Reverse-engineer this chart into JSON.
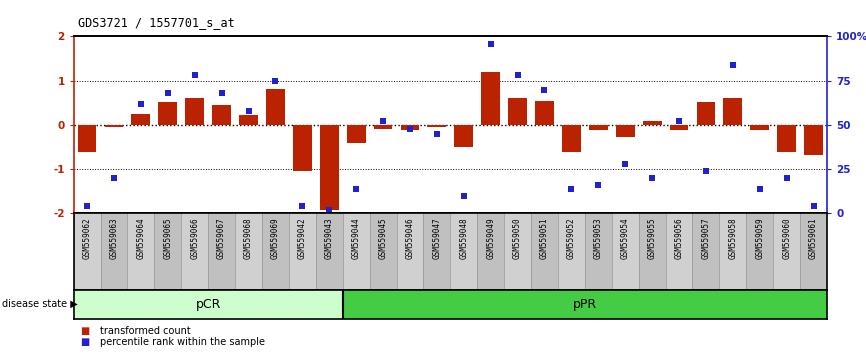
{
  "title": "GDS3721 / 1557701_s_at",
  "samples": [
    "GSM559062",
    "GSM559063",
    "GSM559064",
    "GSM559065",
    "GSM559066",
    "GSM559067",
    "GSM559068",
    "GSM559069",
    "GSM559042",
    "GSM559043",
    "GSM559044",
    "GSM559045",
    "GSM559046",
    "GSM559047",
    "GSM559048",
    "GSM559049",
    "GSM559050",
    "GSM559051",
    "GSM559052",
    "GSM559053",
    "GSM559054",
    "GSM559055",
    "GSM559056",
    "GSM559057",
    "GSM559058",
    "GSM559059",
    "GSM559060",
    "GSM559061"
  ],
  "bar_values": [
    -0.62,
    -0.05,
    0.25,
    0.52,
    0.62,
    0.45,
    0.22,
    0.82,
    -1.05,
    -1.92,
    -0.4,
    -0.08,
    -0.12,
    -0.05,
    -0.5,
    1.2,
    0.6,
    0.55,
    -0.6,
    -0.12,
    -0.28,
    0.08,
    -0.12,
    0.52,
    0.62,
    -0.12,
    -0.6,
    -0.68
  ],
  "percentile_values": [
    4,
    20,
    62,
    68,
    78,
    68,
    58,
    75,
    4,
    2,
    14,
    52,
    48,
    45,
    10,
    96,
    78,
    70,
    14,
    16,
    28,
    20,
    52,
    24,
    84,
    14,
    20,
    4
  ],
  "pCR_count": 10,
  "pPR_count": 18,
  "bar_color": "#bb2200",
  "dot_color": "#2222cc",
  "ylim": [
    -2.0,
    2.0
  ],
  "yticks_left": [
    -2,
    -1,
    0,
    1,
    2
  ],
  "yticks_right": [
    0,
    25,
    50,
    75,
    100
  ],
  "dotted_lines": [
    -1,
    0,
    1
  ],
  "legend_bar": "transformed count",
  "legend_dot": "percentile rank within the sample",
  "disease_state_label": "disease state",
  "pCR_label": "pCR",
  "pPR_label": "pPR",
  "pCR_color": "#ccffcc",
  "pPR_color": "#44cc44",
  "header_bg_even": "#d0d0d0",
  "header_bg_odd": "#c0c0c0",
  "separator_color": "#888888"
}
